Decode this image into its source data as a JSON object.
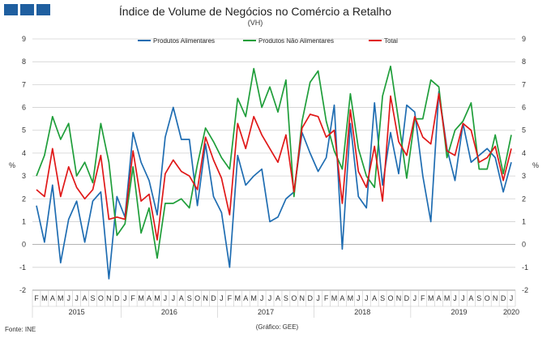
{
  "header": {
    "logo_color": "#1f5fa0",
    "title": "Índice de Volume de Negócios no Comércio a Retalho",
    "subtitle": "(VH)"
  },
  "footer": {
    "source": "Fonte: INE",
    "credit": "(Gráfico: GEE)"
  },
  "chart_data": {
    "type": "line",
    "title": "Índice de Volume de Negócios no Comércio a Retalho",
    "subtitle": "(VH)",
    "ylabel_left": "%",
    "ylabel_right": "%",
    "ylim": [
      -2,
      9
    ],
    "yticks": [
      -2,
      -1,
      0,
      1,
      2,
      3,
      4,
      5,
      6,
      7,
      8,
      9
    ],
    "grid": "horizontal",
    "legend_position": "top",
    "x_month_labels": [
      "F",
      "M",
      "A",
      "M",
      "J",
      "J",
      "A",
      "S",
      "O",
      "N",
      "D",
      "J",
      "F",
      "M",
      "A",
      "M",
      "J",
      "J",
      "A",
      "S",
      "O",
      "N",
      "D",
      "J",
      "F",
      "M",
      "A",
      "M",
      "J",
      "J",
      "A",
      "S",
      "O",
      "N",
      "D",
      "J",
      "F",
      "M",
      "A",
      "M",
      "J",
      "J",
      "A",
      "S",
      "O",
      "N",
      "D",
      "J",
      "F",
      "M",
      "A",
      "M",
      "J",
      "J",
      "A",
      "S",
      "O",
      "N",
      "D",
      "J"
    ],
    "x_year_labels": [
      {
        "label": "2015",
        "start": 0,
        "end": 10
      },
      {
        "label": "2016",
        "start": 11,
        "end": 22
      },
      {
        "label": "2017",
        "start": 23,
        "end": 34
      },
      {
        "label": "2018",
        "start": 35,
        "end": 46
      },
      {
        "label": "2019",
        "start": 47,
        "end": 58
      },
      {
        "label": "2020",
        "start": 59,
        "end": 59
      }
    ],
    "series": [
      {
        "name": "Produtos Alimentares",
        "color": "#1f6db2",
        "values": [
          1.7,
          0.1,
          2.6,
          -0.8,
          1.1,
          1.9,
          0.1,
          1.9,
          2.3,
          -1.5,
          2.1,
          1.2,
          4.9,
          3.6,
          2.8,
          1.3,
          4.7,
          6.0,
          4.6,
          4.6,
          1.7,
          4.4,
          2.1,
          1.4,
          -1.0,
          3.9,
          2.6,
          3.0,
          3.3,
          1.0,
          1.2,
          2.0,
          2.3,
          4.9,
          4.0,
          3.2,
          3.8,
          6.1,
          -0.2,
          5.3,
          2.1,
          1.6,
          6.2,
          2.6,
          4.9,
          3.1,
          6.1,
          5.8,
          3.0,
          1.0,
          6.7,
          4.2,
          2.8,
          5.3,
          3.6,
          3.9,
          4.2,
          3.8,
          2.3,
          3.6
        ]
      },
      {
        "name": "Produtos Não Alimentares",
        "color": "#1f9e3a",
        "values": [
          3.0,
          3.9,
          5.6,
          4.6,
          5.3,
          3.0,
          3.6,
          2.7,
          5.3,
          3.6,
          0.4,
          0.9,
          3.4,
          0.5,
          1.6,
          -0.6,
          1.8,
          1.8,
          2.0,
          1.6,
          3.5,
          5.1,
          4.5,
          3.8,
          3.3,
          6.4,
          5.6,
          7.7,
          6.0,
          6.9,
          5.8,
          7.2,
          2.1,
          5.4,
          7.1,
          7.6,
          5.4,
          4.1,
          3.3,
          6.6,
          4.2,
          3.0,
          2.5,
          6.5,
          7.8,
          5.4,
          2.9,
          5.5,
          5.5,
          7.2,
          6.9,
          3.8,
          5.0,
          5.4,
          6.2,
          3.3,
          3.3,
          4.8,
          3.1,
          4.8
        ]
      },
      {
        "name": "Total",
        "color": "#e01818",
        "values": [
          2.4,
          2.1,
          4.2,
          2.1,
          3.4,
          2.5,
          2.0,
          2.4,
          3.9,
          1.1,
          1.2,
          1.1,
          4.1,
          1.9,
          2.2,
          0.2,
          3.1,
          3.7,
          3.2,
          3.0,
          2.4,
          4.7,
          3.7,
          2.9,
          1.3,
          5.3,
          4.2,
          5.6,
          4.8,
          4.2,
          3.6,
          4.8,
          2.3,
          5.1,
          5.7,
          5.6,
          4.7,
          5.0,
          1.8,
          5.9,
          3.2,
          2.5,
          4.3,
          1.9,
          6.5,
          4.5,
          3.9,
          5.6,
          4.7,
          4.4,
          6.6,
          4.1,
          3.9,
          5.3,
          5.0,
          3.6,
          3.8,
          4.3,
          2.8,
          4.2
        ]
      }
    ]
  }
}
